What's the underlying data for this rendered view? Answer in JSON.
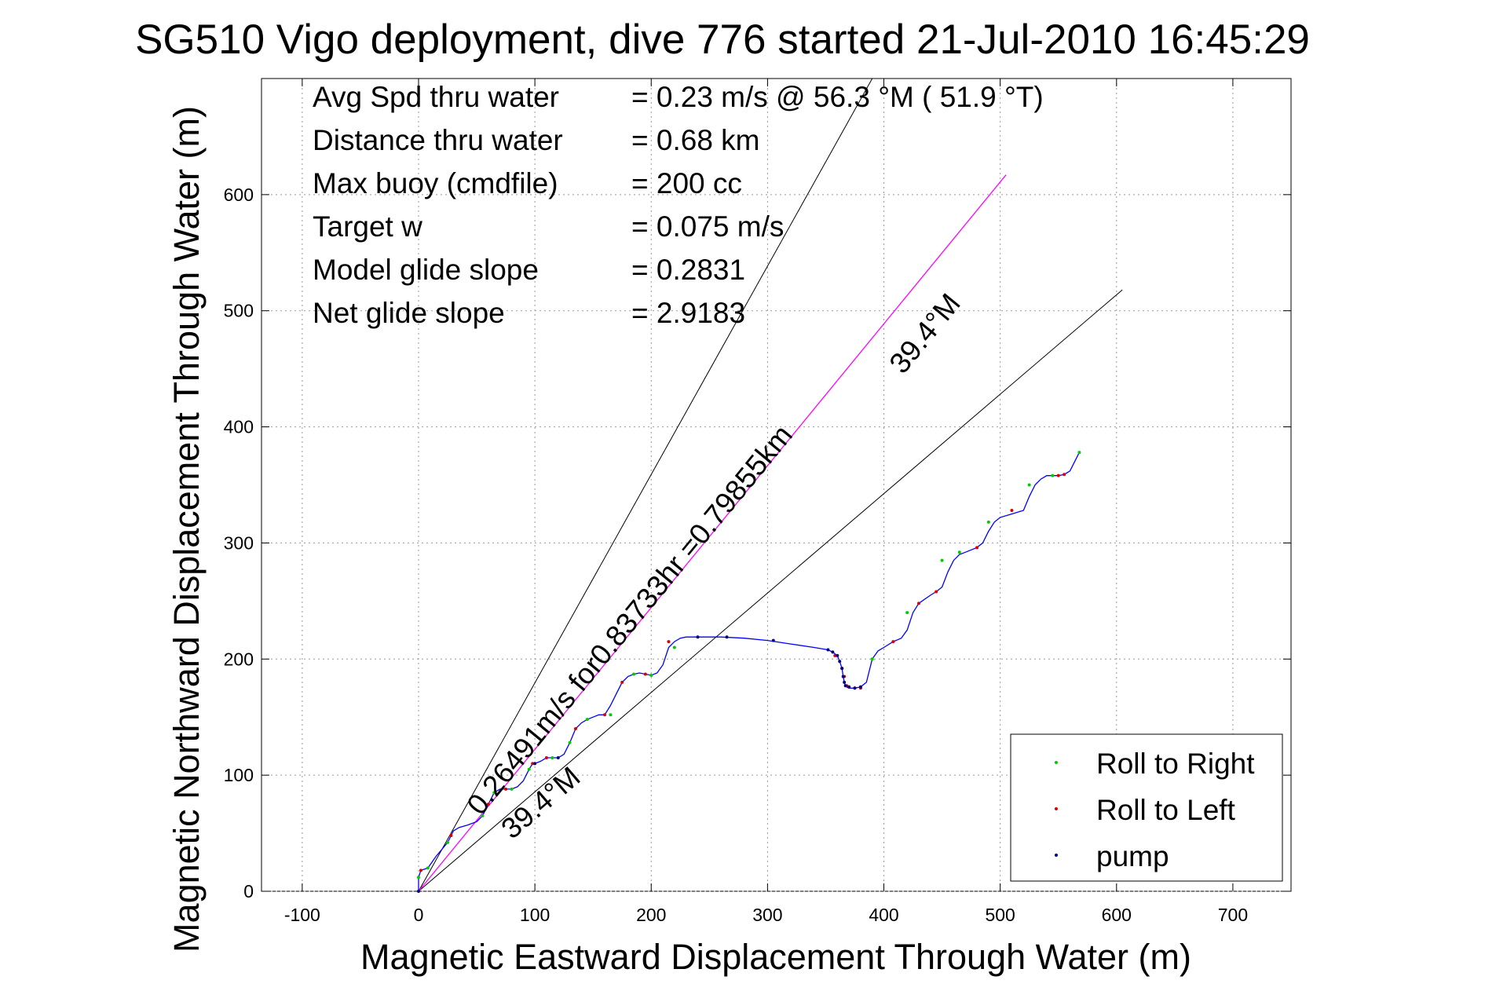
{
  "chart_data": {
    "type": "scatter",
    "title": "SG510 Vigo deployment, dive 776 started 21-Jul-2010 16:45:29",
    "xlabel": "Magnetic Eastward Displacement Through Water (m)",
    "ylabel": "Magnetic Northward Displacement Through Water (m)",
    "xlim": [
      -135,
      750
    ],
    "ylim": [
      0,
      700
    ],
    "xticks": [
      -100,
      0,
      100,
      200,
      300,
      400,
      500,
      600,
      700
    ],
    "yticks": [
      0,
      100,
      200,
      300,
      400,
      500,
      600
    ],
    "grid": true,
    "legend_position": "bottom-right",
    "colors": {
      "track": "#0000ff",
      "roll_right": "#00cc00",
      "roll_left": "#dd0000",
      "pump": "#000080",
      "average": "#ff00ff",
      "envelope": "#000000",
      "grid": "#999999"
    },
    "summary": [
      {
        "label": "Avg Spd thru water",
        "value": "=  0.23 m/s @  56.3 °M ( 51.9 °T)"
      },
      {
        "label": "Distance thru water",
        "value": "=  0.68 km"
      },
      {
        "label": "Max buoy (cmdfile)",
        "value": "= 200 cc"
      },
      {
        "label": "Target w",
        "value": "= 0.075 m/s"
      },
      {
        "label": "Model glide slope",
        "value": "= 0.2831"
      },
      {
        "label": "Net glide slope",
        "value": "= 2.9183"
      }
    ],
    "annotations": [
      {
        "text": "0.26491m/s for0.83733hr =0.79855km"
      },
      {
        "text": "39.4°M"
      },
      {
        "text": "39.4°M"
      }
    ],
    "legend": [
      {
        "label": "Roll to Right"
      },
      {
        "label": "Roll to Left"
      },
      {
        "label": "pump"
      }
    ],
    "track": {
      "x": [
        0,
        0,
        2,
        8,
        15,
        25,
        28,
        30,
        35,
        42,
        50,
        55,
        60,
        65,
        70,
        75,
        80,
        85,
        90,
        95,
        98,
        100,
        105,
        110,
        115,
        120,
        125,
        130,
        135,
        140,
        145,
        150,
        155,
        160,
        165,
        170,
        175,
        180,
        185,
        190,
        195,
        200,
        205,
        210,
        215,
        220,
        225,
        230,
        240,
        260,
        280,
        300,
        320,
        340,
        352,
        356,
        360,
        362,
        364,
        365,
        366,
        367,
        368,
        370,
        375,
        380,
        385,
        390,
        395,
        400,
        408,
        415,
        420,
        425,
        430,
        440,
        445,
        450,
        455,
        460,
        465,
        470,
        475,
        480,
        485,
        490,
        495,
        500,
        510,
        520,
        525,
        530,
        535,
        540,
        545,
        550,
        555,
        560,
        568
      ],
      "y": [
        0,
        12,
        18,
        20,
        30,
        42,
        48,
        52,
        55,
        57,
        60,
        65,
        75,
        85,
        88,
        88,
        88,
        90,
        95,
        105,
        110,
        110,
        112,
        115,
        115,
        115,
        118,
        128,
        140,
        145,
        148,
        150,
        152,
        152,
        160,
        170,
        180,
        185,
        187,
        188,
        187,
        186,
        188,
        195,
        210,
        215,
        218,
        219,
        219,
        219,
        218,
        216,
        213,
        210,
        208,
        206,
        203,
        198,
        192,
        185,
        180,
        177,
        176,
        175,
        175,
        176,
        180,
        200,
        207,
        210,
        215,
        218,
        225,
        240,
        248,
        255,
        258,
        262,
        275,
        285,
        290,
        292,
        294,
        296,
        300,
        310,
        318,
        322,
        325,
        328,
        340,
        350,
        355,
        358,
        358,
        358,
        359,
        362,
        378
      ]
    },
    "roll_right": {
      "x": [
        0,
        8,
        25,
        55,
        65,
        80,
        95,
        115,
        130,
        145,
        165,
        185,
        200,
        220,
        390,
        420,
        450,
        465,
        490,
        525,
        545,
        568
      ],
      "y": [
        12,
        20,
        42,
        65,
        85,
        88,
        105,
        115,
        128,
        148,
        152,
        187,
        186,
        210,
        200,
        240,
        285,
        292,
        318,
        350,
        358,
        378
      ]
    },
    "roll_left": {
      "x": [
        2,
        28,
        60,
        75,
        98,
        110,
        135,
        160,
        175,
        195,
        215,
        358,
        364,
        366,
        368,
        370,
        375,
        380,
        408,
        430,
        445,
        480,
        510,
        550,
        555
      ],
      "y": [
        18,
        48,
        75,
        88,
        110,
        115,
        140,
        152,
        180,
        187,
        215,
        203,
        192,
        185,
        177,
        176,
        175,
        175,
        215,
        248,
        258,
        296,
        328,
        358,
        359
      ]
    },
    "pump": {
      "x": [
        0,
        100,
        120,
        240,
        265,
        305,
        352,
        356,
        360,
        362,
        364,
        365,
        366,
        367,
        370,
        375,
        380
      ],
      "y": [
        0,
        110,
        115,
        219,
        219,
        216,
        208,
        206,
        203,
        198,
        192,
        185,
        180,
        177,
        176,
        175,
        176
      ]
    },
    "average_line": {
      "x": [
        0,
        505
      ],
      "y": [
        0,
        617
      ]
    },
    "envelope_lines": [
      {
        "x": [
          0,
          390
        ],
        "y": [
          0,
          700
        ]
      },
      {
        "x": [
          0,
          605
        ],
        "y": [
          0,
          518
        ]
      }
    ]
  }
}
